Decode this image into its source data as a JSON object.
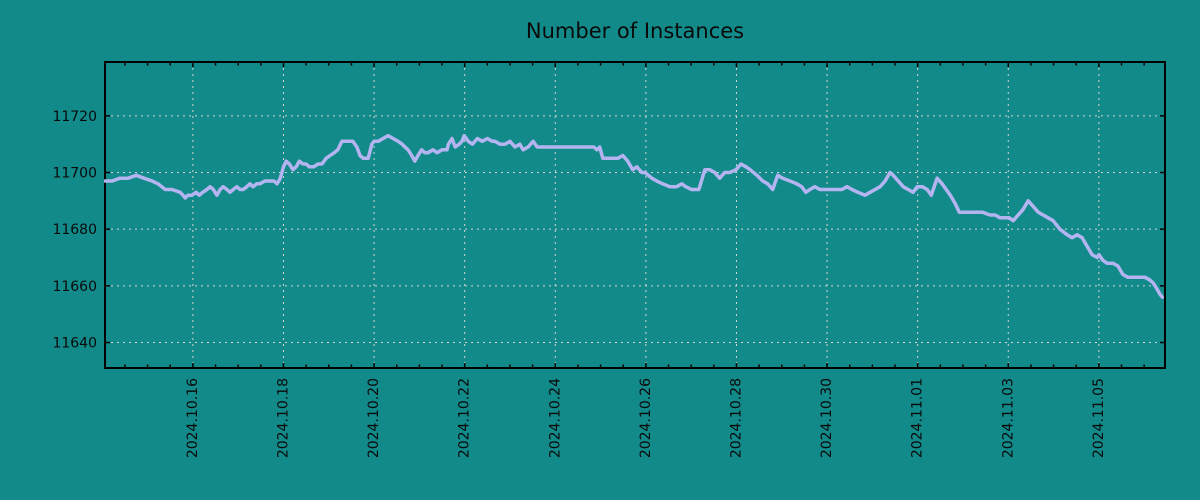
{
  "page": {
    "background_color": "#128a8a"
  },
  "chart_data": {
    "type": "line",
    "title": "Number of Instances",
    "xlabel": "",
    "ylabel": "",
    "legend": "none",
    "grid": true,
    "colors": {
      "background": "#128a8a",
      "line": "#b4b4f0",
      "grid": "#d4d4d4",
      "axis": "#000000",
      "text": "#0a0a0a"
    },
    "x_axis": {
      "unit_note": "t = days since first labeled tick minus 2 (labels every 2 days)",
      "xlim": [
        0.06,
        23.46
      ],
      "minor_tick_step": 0.5,
      "ticks": [
        {
          "t": 2,
          "label": "2024.10.16"
        },
        {
          "t": 4,
          "label": "2024.10.18"
        },
        {
          "t": 6,
          "label": "2024.10.20"
        },
        {
          "t": 8,
          "label": "2024.10.22"
        },
        {
          "t": 10,
          "label": "2024.10.24"
        },
        {
          "t": 12,
          "label": "2024.10.26"
        },
        {
          "t": 14,
          "label": "2024.10.28"
        },
        {
          "t": 16,
          "label": "2024.10.30"
        },
        {
          "t": 18,
          "label": "2024.11.01"
        },
        {
          "t": 20,
          "label": "2024.11.03"
        },
        {
          "t": 22,
          "label": "2024.11.05"
        }
      ]
    },
    "y_axis": {
      "ylim": [
        11631,
        11739
      ],
      "ticks": [
        11640,
        11660,
        11680,
        11700,
        11720
      ]
    },
    "series": [
      {
        "name": "instances",
        "points": [
          [
            0.06,
            11697
          ],
          [
            0.22,
            11697
          ],
          [
            0.39,
            11698
          ],
          [
            0.57,
            11698
          ],
          [
            0.75,
            11699
          ],
          [
            0.92,
            11698
          ],
          [
            1.1,
            11697
          ],
          [
            1.23,
            11696
          ],
          [
            1.39,
            11694
          ],
          [
            1.54,
            11694
          ],
          [
            1.72,
            11693
          ],
          [
            1.78,
            11692
          ],
          [
            1.83,
            11691
          ],
          [
            1.89,
            11692
          ],
          [
            1.98,
            11692
          ],
          [
            2.07,
            11693
          ],
          [
            2.14,
            11692
          ],
          [
            2.22,
            11693
          ],
          [
            2.31,
            11694
          ],
          [
            2.38,
            11695
          ],
          [
            2.45,
            11694
          ],
          [
            2.53,
            11692
          ],
          [
            2.6,
            11694
          ],
          [
            2.67,
            11695
          ],
          [
            2.75,
            11694
          ],
          [
            2.82,
            11693
          ],
          [
            2.89,
            11694
          ],
          [
            2.97,
            11695
          ],
          [
            3.04,
            11694
          ],
          [
            3.11,
            11694
          ],
          [
            3.19,
            11695
          ],
          [
            3.26,
            11696
          ],
          [
            3.33,
            11695
          ],
          [
            3.41,
            11696
          ],
          [
            3.48,
            11696
          ],
          [
            3.59,
            11697
          ],
          [
            3.7,
            11697
          ],
          [
            3.79,
            11697
          ],
          [
            3.86,
            11696
          ],
          [
            3.93,
            11698
          ],
          [
            4.0,
            11702
          ],
          [
            4.06,
            11704
          ],
          [
            4.13,
            11703
          ],
          [
            4.21,
            11701
          ],
          [
            4.28,
            11702
          ],
          [
            4.35,
            11704
          ],
          [
            4.43,
            11703
          ],
          [
            4.5,
            11703
          ],
          [
            4.57,
            11702
          ],
          [
            4.67,
            11702
          ],
          [
            4.76,
            11703
          ],
          [
            4.85,
            11703
          ],
          [
            4.94,
            11705
          ],
          [
            5.03,
            11706
          ],
          [
            5.12,
            11707
          ],
          [
            5.2,
            11708
          ],
          [
            5.29,
            11711
          ],
          [
            5.4,
            11711
          ],
          [
            5.53,
            11711
          ],
          [
            5.62,
            11709
          ],
          [
            5.69,
            11706
          ],
          [
            5.76,
            11705
          ],
          [
            5.87,
            11705
          ],
          [
            5.95,
            11710
          ],
          [
            6.0,
            11711
          ],
          [
            6.09,
            11711
          ],
          [
            6.2,
            11712
          ],
          [
            6.31,
            11713
          ],
          [
            6.42,
            11712
          ],
          [
            6.53,
            11711
          ],
          [
            6.62,
            11710
          ],
          [
            6.68,
            11709
          ],
          [
            6.75,
            11708
          ],
          [
            6.83,
            11706
          ],
          [
            6.9,
            11704
          ],
          [
            6.97,
            11706
          ],
          [
            7.05,
            11708
          ],
          [
            7.12,
            11707
          ],
          [
            7.19,
            11707
          ],
          [
            7.3,
            11708
          ],
          [
            7.39,
            11707
          ],
          [
            7.5,
            11708
          ],
          [
            7.61,
            11708
          ],
          [
            7.64,
            11710
          ],
          [
            7.72,
            11712
          ],
          [
            7.79,
            11709
          ],
          [
            7.88,
            11710
          ],
          [
            7.94,
            11711
          ],
          [
            7.99,
            11713
          ],
          [
            8.08,
            11711
          ],
          [
            8.17,
            11710
          ],
          [
            8.28,
            11712
          ],
          [
            8.39,
            11711
          ],
          [
            8.5,
            11712
          ],
          [
            8.61,
            11711
          ],
          [
            8.67,
            11711
          ],
          [
            8.78,
            11710
          ],
          [
            8.89,
            11710
          ],
          [
            9.0,
            11711
          ],
          [
            9.11,
            11709
          ],
          [
            9.22,
            11710
          ],
          [
            9.29,
            11708
          ],
          [
            9.4,
            11709
          ],
          [
            9.51,
            11711
          ],
          [
            9.6,
            11709
          ],
          [
            9.71,
            11709
          ],
          [
            9.82,
            11709
          ],
          [
            9.88,
            11709
          ],
          [
            9.99,
            11709
          ],
          [
            10.1,
            11709
          ],
          [
            10.21,
            11709
          ],
          [
            10.32,
            11709
          ],
          [
            10.43,
            11709
          ],
          [
            10.54,
            11709
          ],
          [
            10.65,
            11709
          ],
          [
            10.76,
            11709
          ],
          [
            10.85,
            11709
          ],
          [
            10.92,
            11708
          ],
          [
            10.98,
            11709
          ],
          [
            11.05,
            11705
          ],
          [
            11.16,
            11705
          ],
          [
            11.27,
            11705
          ],
          [
            11.38,
            11705
          ],
          [
            11.49,
            11706
          ],
          [
            11.6,
            11704
          ],
          [
            11.71,
            11701
          ],
          [
            11.8,
            11702
          ],
          [
            11.91,
            11700
          ],
          [
            11.98,
            11700
          ],
          [
            12.13,
            11698
          ],
          [
            12.24,
            11697
          ],
          [
            12.37,
            11696
          ],
          [
            12.53,
            11695
          ],
          [
            12.68,
            11695
          ],
          [
            12.79,
            11696
          ],
          [
            12.88,
            11695
          ],
          [
            13.01,
            11694
          ],
          [
            13.17,
            11694
          ],
          [
            13.3,
            11701
          ],
          [
            13.41,
            11701
          ],
          [
            13.52,
            11700
          ],
          [
            13.63,
            11698
          ],
          [
            13.74,
            11700
          ],
          [
            13.85,
            11700
          ],
          [
            13.99,
            11701
          ],
          [
            14.1,
            11703
          ],
          [
            14.21,
            11702
          ],
          [
            14.3,
            11701
          ],
          [
            14.45,
            11699
          ],
          [
            14.58,
            11697
          ],
          [
            14.69,
            11696
          ],
          [
            14.8,
            11694
          ],
          [
            14.91,
            11699
          ],
          [
            15.02,
            11698
          ],
          [
            15.18,
            11697
          ],
          [
            15.33,
            11696
          ],
          [
            15.44,
            11695
          ],
          [
            15.53,
            11693
          ],
          [
            15.62,
            11694
          ],
          [
            15.73,
            11695
          ],
          [
            15.84,
            11694
          ],
          [
            15.99,
            11694
          ],
          [
            16.13,
            11694
          ],
          [
            16.33,
            11694
          ],
          [
            16.44,
            11695
          ],
          [
            16.55,
            11694
          ],
          [
            16.68,
            11693
          ],
          [
            16.84,
            11692
          ],
          [
            16.95,
            11693
          ],
          [
            17.06,
            11694
          ],
          [
            17.17,
            11695
          ],
          [
            17.28,
            11697
          ],
          [
            17.39,
            11700
          ],
          [
            17.46,
            11699
          ],
          [
            17.57,
            11697
          ],
          [
            17.68,
            11695
          ],
          [
            17.79,
            11694
          ],
          [
            17.9,
            11693
          ],
          [
            17.99,
            11695
          ],
          [
            18.1,
            11695
          ],
          [
            18.21,
            11694
          ],
          [
            18.3,
            11692
          ],
          [
            18.43,
            11698
          ],
          [
            18.54,
            11696
          ],
          [
            18.63,
            11694
          ],
          [
            18.72,
            11692
          ],
          [
            18.83,
            11689
          ],
          [
            18.92,
            11686
          ],
          [
            19.01,
            11686
          ],
          [
            19.16,
            11686
          ],
          [
            19.32,
            11686
          ],
          [
            19.43,
            11686
          ],
          [
            19.6,
            11685
          ],
          [
            19.71,
            11685
          ],
          [
            19.82,
            11684
          ],
          [
            19.93,
            11684
          ],
          [
            20.02,
            11684
          ],
          [
            20.11,
            11683
          ],
          [
            20.22,
            11685
          ],
          [
            20.33,
            11687
          ],
          [
            20.44,
            11690
          ],
          [
            20.55,
            11688
          ],
          [
            20.66,
            11686
          ],
          [
            20.77,
            11685
          ],
          [
            20.88,
            11684
          ],
          [
            20.99,
            11683
          ],
          [
            21.14,
            11680
          ],
          [
            21.3,
            11678
          ],
          [
            21.41,
            11677
          ],
          [
            21.52,
            11678
          ],
          [
            21.63,
            11677
          ],
          [
            21.74,
            11674
          ],
          [
            21.85,
            11671
          ],
          [
            21.96,
            11670
          ],
          [
            22.0,
            11671
          ],
          [
            22.09,
            11669
          ],
          [
            22.18,
            11668
          ],
          [
            22.31,
            11668
          ],
          [
            22.42,
            11667
          ],
          [
            22.53,
            11664
          ],
          [
            22.64,
            11663
          ],
          [
            22.75,
            11663
          ],
          [
            22.91,
            11663
          ],
          [
            23.02,
            11663
          ],
          [
            23.13,
            11662
          ],
          [
            23.2,
            11661
          ],
          [
            23.28,
            11659
          ],
          [
            23.35,
            11657
          ],
          [
            23.4,
            11656
          ]
        ]
      }
    ]
  }
}
